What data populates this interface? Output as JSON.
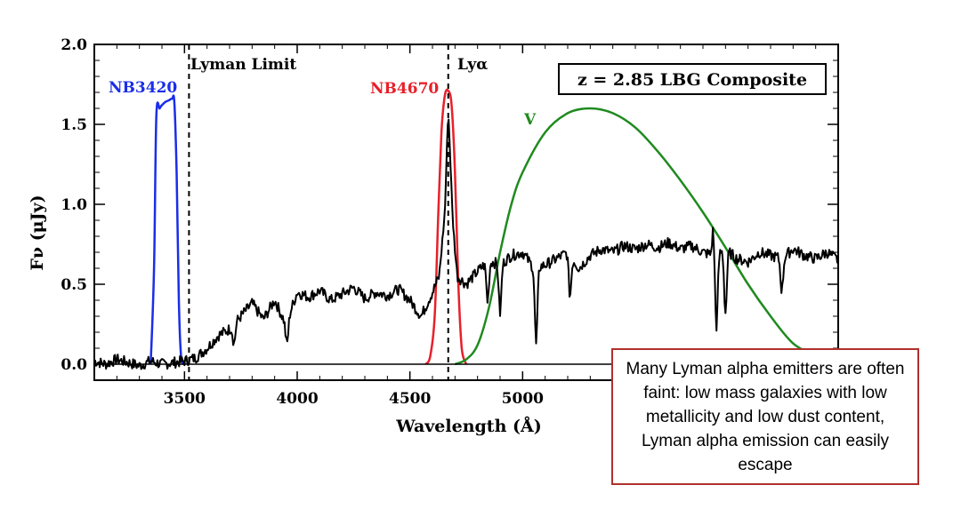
{
  "chart_data": {
    "type": "line",
    "xlabel": "Wavelength (Å)",
    "ylabel": "Fν (μJy)",
    "xlim": [
      3100,
      6400
    ],
    "ylim": [
      -0.1,
      2.0
    ],
    "x_ticks": [
      3500,
      4000,
      4500,
      5000
    ],
    "y_ticks": [
      0.0,
      0.5,
      1.0,
      1.5,
      2.0
    ],
    "y_tick_labels": [
      "0.0",
      "0.5",
      "1.0",
      "1.5",
      "2.0"
    ],
    "legend_box": "z = 2.85 LBG Composite",
    "vertical_lines": [
      {
        "x": 3520,
        "label": "Lyman Limit",
        "style": "dashed"
      },
      {
        "x": 4670,
        "label": "Lyα",
        "style": "dashed"
      }
    ],
    "series": [
      {
        "name": "NB3420",
        "color": "#1a2ee8",
        "x": [
          3350,
          3365,
          3375,
          3390,
          3400,
          3415,
          3430,
          3445,
          3455,
          3465,
          3475,
          3485,
          3500
        ],
        "y": [
          0.0,
          0.6,
          1.55,
          1.6,
          1.62,
          1.64,
          1.65,
          1.66,
          1.64,
          1.2,
          0.4,
          0.05,
          0.0
        ]
      },
      {
        "name": "NB4670",
        "color": "#e8202a",
        "x": [
          4570,
          4590,
          4610,
          4625,
          4640,
          4655,
          4670,
          4685,
          4700,
          4715,
          4730,
          4750
        ],
        "y": [
          0.0,
          0.05,
          0.3,
          0.9,
          1.45,
          1.68,
          1.71,
          1.62,
          1.2,
          0.5,
          0.1,
          0.0
        ]
      },
      {
        "name": "V",
        "color": "#1f8a1f",
        "x": [
          4700,
          4750,
          4800,
          4850,
          4900,
          4950,
          5000,
          5100,
          5200,
          5300,
          5400,
          5500,
          5600,
          5700,
          5800,
          5900,
          6000,
          6100,
          6200,
          6300
        ],
        "y": [
          0.0,
          0.03,
          0.12,
          0.35,
          0.7,
          1.0,
          1.2,
          1.45,
          1.57,
          1.6,
          1.57,
          1.48,
          1.33,
          1.15,
          0.95,
          0.73,
          0.5,
          0.3,
          0.13,
          0.05
        ]
      },
      {
        "name": "",
        "color": "#000000",
        "x": [
          3100,
          3150,
          3200,
          3250,
          3300,
          3350,
          3400,
          3450,
          3500,
          3550,
          3600,
          3650,
          3700,
          3750,
          3800,
          3850,
          3900,
          3950,
          4000,
          4050,
          4100,
          4150,
          4200,
          4250,
          4300,
          4350,
          4400,
          4450,
          4500,
          4550,
          4600,
          4630,
          4655,
          4670,
          4690,
          4710,
          4750,
          4800,
          4850,
          4900,
          4950,
          5000,
          5050,
          5100,
          5150,
          5200,
          5250,
          5300,
          5350,
          5400,
          5450,
          5500,
          5550,
          5600,
          5650,
          5700,
          5750,
          5800,
          5850,
          5900,
          5950,
          6000,
          6050,
          6100,
          6150,
          6200,
          6250,
          6300,
          6350,
          6400
        ],
        "y": [
          0.02,
          0.0,
          0.03,
          0.01,
          -0.01,
          0.02,
          0.0,
          0.01,
          0.02,
          0.04,
          0.1,
          0.18,
          0.22,
          0.3,
          0.38,
          0.28,
          0.4,
          0.25,
          0.45,
          0.42,
          0.46,
          0.4,
          0.44,
          0.48,
          0.41,
          0.45,
          0.43,
          0.47,
          0.4,
          0.3,
          0.45,
          0.55,
          0.95,
          1.6,
          0.9,
          0.55,
          0.5,
          0.58,
          0.65,
          0.62,
          0.68,
          0.7,
          0.6,
          0.62,
          0.66,
          0.7,
          0.6,
          0.68,
          0.72,
          0.7,
          0.74,
          0.72,
          0.75,
          0.73,
          0.76,
          0.72,
          0.74,
          0.7,
          0.68,
          0.72,
          0.66,
          0.64,
          0.7,
          0.68,
          0.66,
          0.72,
          0.68,
          0.66,
          0.7,
          0.65
        ]
      }
    ],
    "absorption_dips": [
      {
        "x": 3720,
        "depth": 0.12
      },
      {
        "x": 3955,
        "depth": 0.14
      },
      {
        "x": 4845,
        "depth": 0.25
      },
      {
        "x": 4900,
        "depth": 0.3
      },
      {
        "x": 5060,
        "depth": 0.48
      },
      {
        "x": 5210,
        "depth": 0.25
      },
      {
        "x": 5860,
        "depth": 0.45
      },
      {
        "x": 5900,
        "depth": 0.4
      },
      {
        "x": 6150,
        "depth": 0.2
      }
    ],
    "spike": {
      "x": 5845,
      "height": 0.86
    }
  },
  "callout": {
    "text": "Many Lyman alpha emitters are often faint: low mass galaxies with low metallicity and low dust content, Lyman alpha emission can easily escape"
  }
}
